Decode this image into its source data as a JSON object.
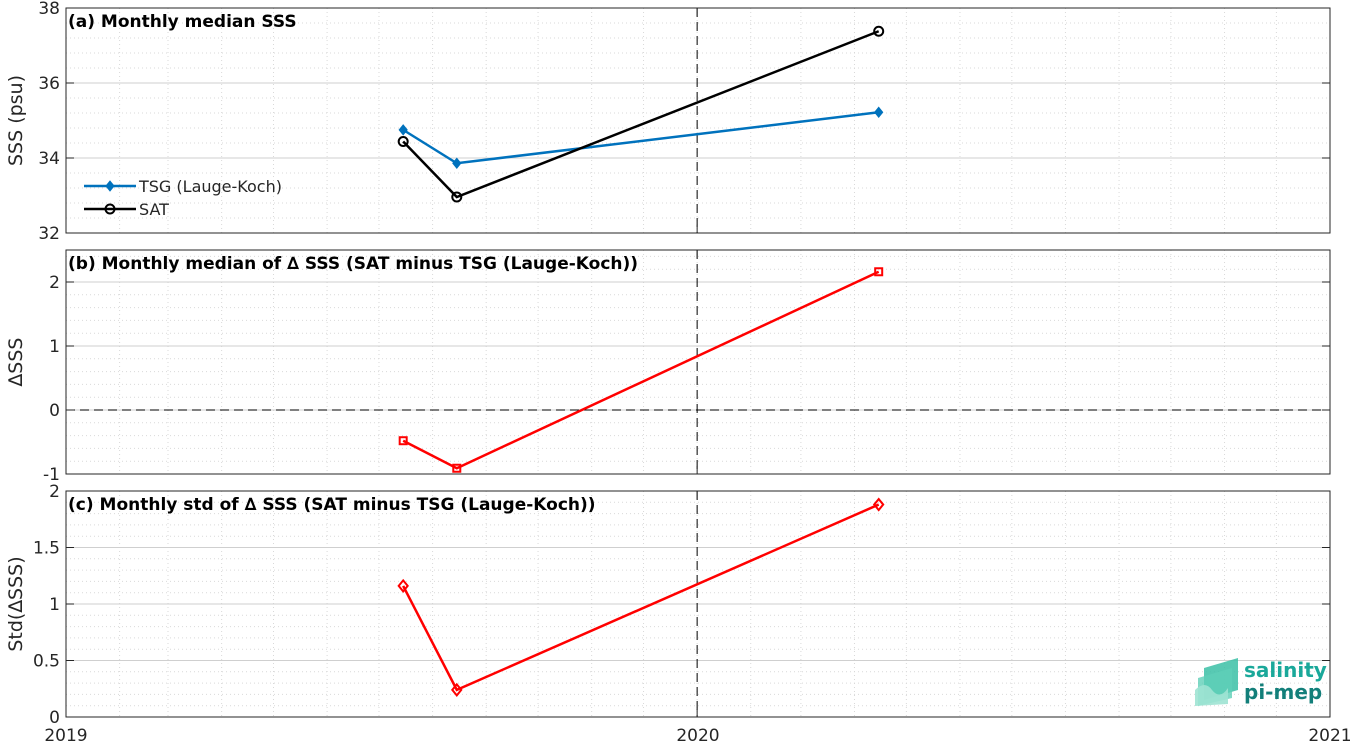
{
  "x_ticks": [
    "2019",
    "2020",
    "2021"
  ],
  "logo": {
    "line1": "salinity",
    "line2": "pi-mep"
  },
  "colors": {
    "tsg": "#0072bd",
    "sat": "#000000",
    "delta": "#ff0000",
    "grid": "#d9d9d9",
    "axis": "#262626"
  },
  "chart_data": [
    {
      "type": "line",
      "title": "(a) Monthly median SSS",
      "xlabel": "",
      "ylabel": "SSS (psu)",
      "xlim": [
        "2019-01-01",
        "2021-01-01"
      ],
      "ylim": [
        32,
        38
      ],
      "yticks": [
        32,
        34,
        36,
        38
      ],
      "grid": true,
      "legend": "left",
      "series": [
        {
          "name": "TSG (Lauge-Koch)",
          "marker": "filled-diamond",
          "color": "#0072bd",
          "x": [
            "2019-07-15",
            "2019-08-15",
            "2020-04-15"
          ],
          "values": [
            34.75,
            33.86,
            35.22
          ]
        },
        {
          "name": "SAT",
          "marker": "circle",
          "color": "#000000",
          "x": [
            "2019-07-15",
            "2019-08-15",
            "2020-04-15"
          ],
          "values": [
            34.44,
            32.96,
            37.38
          ]
        }
      ]
    },
    {
      "type": "line",
      "title": "(b) Monthly median of ∆ SSS (SAT minus TSG (Lauge-Koch))",
      "xlabel": "",
      "ylabel": "∆SSS",
      "xlim": [
        "2019-01-01",
        "2021-01-01"
      ],
      "ylim": [
        -1,
        2.5
      ],
      "yticks": [
        -1,
        0,
        1,
        2
      ],
      "grid": true,
      "zero_line": true,
      "series": [
        {
          "marker": "square",
          "color": "#ff0000",
          "x": [
            "2019-07-15",
            "2019-08-15",
            "2020-04-15"
          ],
          "values": [
            -0.48,
            -0.91,
            2.16
          ]
        }
      ]
    },
    {
      "type": "line",
      "title": "(c) Monthly std of ∆ SSS (SAT minus TSG (Lauge-Koch))",
      "xlabel": "",
      "ylabel": "Std(∆SSS)",
      "xlim": [
        "2019-01-01",
        "2021-01-01"
      ],
      "ylim": [
        0,
        2
      ],
      "yticks": [
        0,
        0.5,
        1,
        1.5,
        2
      ],
      "grid": true,
      "series": [
        {
          "marker": "diamond",
          "color": "#ff0000",
          "x": [
            "2019-07-15",
            "2019-08-15",
            "2020-04-15"
          ],
          "values": [
            1.16,
            0.24,
            1.88
          ]
        }
      ]
    }
  ]
}
